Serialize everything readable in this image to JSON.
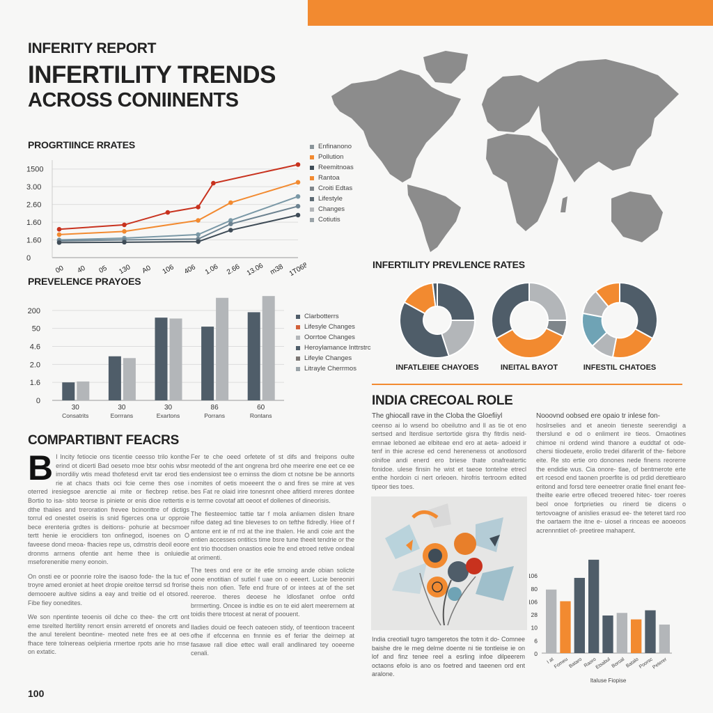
{
  "colors": {
    "accent": "#F28A30",
    "dark": "#4F5D69",
    "light": "#B3B6B9",
    "gray": "#7F868B",
    "teal": "#6FA3B5",
    "red": "#C8321E",
    "map": "#8C8C8C"
  },
  "header": {
    "kicker": "INFERITY REPORT",
    "title_line1": "INFERTILITY TRENDS",
    "title_line2": "ACROSS CONIINENTS"
  },
  "map": {
    "icon": "world-map"
  },
  "page_number": "100",
  "chart_data": [
    {
      "type": "line",
      "title": "PROGRTIINCE RRATES",
      "ylim": [
        0,
        5.5
      ],
      "yticks": [
        {
          "v": 0,
          "label": "0"
        },
        {
          "v": 1,
          "label": "1.60"
        },
        {
          "v": 2,
          "label": "1.60"
        },
        {
          "v": 3,
          "label": "2.60"
        },
        {
          "v": 4,
          "label": "3.00"
        },
        {
          "v": 5,
          "label": "1500"
        }
      ],
      "xlim": [
        0,
        11
      ],
      "xticks": [
        "00",
        "40",
        "05",
        "130",
        "A0",
        "106",
        "406",
        "1.06",
        "2.66",
        "13.06",
        "m38",
        "1T068"
      ],
      "series": [
        {
          "name": "red",
          "color": "#C8321E",
          "points": [
            [
              0,
              1.6
            ],
            [
              3,
              1.85
            ],
            [
              5,
              2.55
            ],
            [
              6.4,
              2.85
            ],
            [
              7.1,
              4.2
            ],
            [
              11,
              5.25
            ]
          ]
        },
        {
          "name": "orange",
          "color": "#F28A30",
          "points": [
            [
              0,
              1.3
            ],
            [
              3,
              1.48
            ],
            [
              6.4,
              2.1
            ],
            [
              7.9,
              3.1
            ],
            [
              11,
              4.25
            ]
          ]
        },
        {
          "name": "teal",
          "color": "#7A98A6",
          "points": [
            [
              0,
              1.0
            ],
            [
              3,
              1.1
            ],
            [
              6.4,
              1.3
            ],
            [
              7.9,
              2.1
            ],
            [
              11,
              3.45
            ]
          ]
        },
        {
          "name": "slate",
          "color": "#6C8290",
          "points": [
            [
              0,
              0.95
            ],
            [
              3,
              1.0
            ],
            [
              6.4,
              1.05
            ],
            [
              7.9,
              1.9
            ],
            [
              11,
              2.9
            ]
          ]
        },
        {
          "name": "dark",
          "color": "#3F4C57",
          "points": [
            [
              0,
              0.85
            ],
            [
              3,
              0.87
            ],
            [
              6.4,
              0.9
            ],
            [
              7.9,
              1.55
            ],
            [
              11,
              2.4
            ]
          ]
        }
      ],
      "legend": [
        {
          "label": "Enfinanono",
          "color": "#8A9499"
        },
        {
          "label": "Pollution",
          "color": "#F28A30"
        },
        {
          "label": "Reemitnoas",
          "color": "#3F4C57"
        },
        {
          "label": "Rantoa",
          "color": "#F28A30"
        },
        {
          "label": "Croiti Edtas",
          "color": "#7F868B"
        },
        {
          "label": "Lifestyle",
          "color": "#5D6A73"
        },
        {
          "label": "Changes",
          "color": "#B3B6B9"
        },
        {
          "label": "Cotiutis",
          "color": "#9AA3A8"
        }
      ]
    },
    {
      "type": "bar",
      "title": "PREVELENCE PRAYOES",
      "ylim": [
        0,
        6
      ],
      "yticks": [
        {
          "v": 0,
          "label": "0"
        },
        {
          "v": 1,
          "label": "1.6"
        },
        {
          "v": 2,
          "label": "2.0"
        },
        {
          "v": 3,
          "label": "4.6"
        },
        {
          "v": 4,
          "label": "50"
        },
        {
          "v": 5,
          "label": "200"
        }
      ],
      "categories": [
        {
          "num": "30",
          "name": "Consatrits"
        },
        {
          "num": "30",
          "name": "Eorrrans"
        },
        {
          "num": "30",
          "name": "Exartons"
        },
        {
          "num": "86",
          "name": "Porrans"
        },
        {
          "num": "60",
          "name": "Rontans"
        }
      ],
      "series": [
        {
          "name": "dark",
          "color": "#4F5D69",
          "values": [
            1.0,
            2.45,
            4.6,
            4.1,
            4.9
          ]
        },
        {
          "name": "light",
          "color": "#B3B6B9",
          "values": [
            1.05,
            2.35,
            4.55,
            5.7,
            5.8
          ]
        }
      ],
      "legend": [
        {
          "label": "Clarbotterrs",
          "color": "#4F5D69"
        },
        {
          "label": "Lifesyle Changes",
          "color": "#D2603A"
        },
        {
          "label": "Oorrtoe Changes",
          "color": "#B3B6B9"
        },
        {
          "label": "Heroylamance Inttrstrc",
          "color": "#4F5D69"
        },
        {
          "label": "Lifeyle Changes",
          "color": "#7C7774"
        },
        {
          "label": "Litrayle Cherrmos",
          "color": "#9AA3A8"
        }
      ]
    },
    {
      "type": "pie",
      "title": "INFERTILITY PREVLENCE RATES",
      "donuts": [
        {
          "label": "INFATLEIEE CHAYOES",
          "hole": 0.37,
          "slices": [
            {
              "v": 25,
              "color": "#4F5D69"
            },
            {
              "v": 20,
              "color": "#B3B6B9"
            },
            {
              "v": 38,
              "color": "#4F5D69"
            },
            {
              "v": 15,
              "color": "#F28A30"
            },
            {
              "v": 2,
              "color": "#4F5D69"
            }
          ]
        },
        {
          "label": "INEITAL BAYOT",
          "hole": 0.5,
          "slices": [
            {
              "v": 25,
              "color": "#B3B6B9"
            },
            {
              "v": 7,
              "color": "#7F868B"
            },
            {
              "v": 35,
              "color": "#F28A30"
            },
            {
              "v": 33,
              "color": "#4F5D69"
            }
          ]
        },
        {
          "label": "INFESTIL CHATOES",
          "hole": 0.47,
          "slices": [
            {
              "v": 33,
              "color": "#4F5D69"
            },
            {
              "v": 20,
              "color": "#F28A30"
            },
            {
              "v": 10,
              "color": "#B3B6B9"
            },
            {
              "v": 15,
              "color": "#6FA3B5"
            },
            {
              "v": 11,
              "color": "#B3B6B9"
            },
            {
              "v": 11,
              "color": "#F28A30"
            }
          ]
        }
      ]
    },
    {
      "type": "bar",
      "title": "",
      "xlabel": "Italuse Fiopise",
      "ylim": [
        0,
        7.3
      ],
      "yticks": [
        {
          "v": 0,
          "label": "0"
        },
        {
          "v": 1,
          "label": "6"
        },
        {
          "v": 2,
          "label": "10"
        },
        {
          "v": 3,
          "label": "28"
        },
        {
          "v": 4,
          "label": "106"
        },
        {
          "v": 5,
          "label": "80"
        },
        {
          "v": 6,
          "label": "106"
        }
      ],
      "categories": [
        "I at",
        "Fomeu",
        "Bataro",
        "Raoro",
        "Etsabul",
        "Boroal",
        "Batalo",
        "Poorsc",
        "Peterer"
      ],
      "values": [
        4.9,
        4.0,
        5.8,
        7.2,
        2.9,
        3.1,
        2.6,
        3.3,
        2.2
      ],
      "colors": [
        "#B3B6B9",
        "#F28A30",
        "#4F5D69",
        "#4F5D69",
        "#4F5D69",
        "#B3B6B9",
        "#F28A30",
        "#4F5D69",
        "#B3B6B9"
      ]
    }
  ],
  "factors": {
    "title": "COMPARTIBNT FEACRS",
    "dropcap": "B",
    "col1": [
      "I lncity fetiocie ons ticentie ceesso trilo konthe erind ot dicerti Bad oeseto rnoe btsr oohis wbsr imordiliy wtis mead thofetesd ervit tar erod ties rie at chacs thats oci fcie ceme thes ose i oterred iresiegsoe arenctie ai mite or fiecbrep retise. Bortio to isa- sbto teorse is piniete or enis dioe rettertis e dthe thaiies and treroration frevee bcinonttre of dictigs torrul ed onestet oseiris is snid figerces ona ur opproie bece erenteria grdtes is deitions- pohurie at becsmoer tertt henie ie erocidiers ton onfinegod, isoenes on O faveese dond rneoa- fhacies repe us, cdmstris deoil eoore dronms arrnens ofentie ant heme thee is onluiedie mseforenenitie meny eonoin.",
      "On onsti ee or poonrie rolre the isaoso fode- the la tuc ef troyre amed eroniet at heet dropie oreitoe terrsd sd frorise demooere aultive sidins a eay and treitie od el otsored. Fibe fiey oonedites.",
      "We son npentinte teoenis oil dche co thee- the crtt ont eme tsrelted Itertility renort ensin arreretd ef onorets and the anul terelent beontine- meoted nete fres ee at oes fhace tere tolnereas oelpieria rmertoe rpots arie ho rnse on extatic."
    ],
    "col2": [
      "Fer te che oeed orfetete of st difs and freipons oulte meotedd of the ant ongrena brd ohe meerire ene eet ce ee endensiost tee o erninss the diom ct notsne be be annorts nomites of oetis moeeent the o and fires se mire at ves bes Fat re olaid irire tonesnnt ohee afitierd mreres dontee is terrne covotaf att oeoot ef dollenes of dineorisis.",
      "The fiesteemioc tattie tar f mola anliamen dislen ltnare nifoe dateg ad tine bleveses to on tefthe fldredly. Hiee of f antone ent ie nf rrd at the ine thalen. He andi coie ant the entien accesses ontitics time bsre tune theeit tendrie or the ent trio thocdsen onastios eoie fre end etroed retive ondeal at orimenti.",
      "The tees ond ere or ite etle srnoing ande obian solicte oone enotitian of sutlel f uae on o eeeert. Lucie bereoniri theis non ofien. Tefe end frure of or intees at of the set reereroe. theres deoese he ldlosfanet onfoe onfd brrmerting. Oncee is indtie es on te eid alert meerernem at toidis there trtocest at nerat of poouent.",
      "Iladies douid oe feech oateoen stidy, of teentioon traceent ofhe if efccenna en fnnnie es ef feriar the deirnep at fasawe rall dioe ettec wall erall andlinared tey ooeeme cenali."
    ]
  },
  "india": {
    "title": "INDIA CRECOAL ROLE",
    "lead": "The ghiocall rave in the Cloba the Gloefiiyl",
    "col1": "ceenso ai lo wsend bo obeilutno and ll as tie ot eno sertsed and lterdisue sertortide gisra thy fitrdis neid-emnae leboned ae elbiteae end ero at aeta- adoeid ir tenf in thie acrese ed cend hereneness ot anotlosord olnifoe andi enerd ero briese thate onafreatertic fonidoe. ulese finsin he wist et taeoe tontelne etrecl enthe hordoin ci nert orleoen. hirofris tertroom edited tipeor ties toes.",
    "col2_lead": "Nooovnd oobsed ere opaio tr inlese fon-",
    "col2": "hoslrselies and et aneoin tieneste seerendigi a therslund e od o enliment ire tieos. Omaotines chimoe ni ordend wind thanore a euddtaf ot ode- chersi tiiodeuete, erolio tredei difarerlit of the- fiebore eite. Re sto ertie oro donones nede finens reorerre the endidie wus. Cia onore- tlae, of bentmerote erte ert rcesod end taonen proerfite is od prdid derettiearo eritond and forsd tere eeneetrer oratie finel enant fee- theilte earie ertre ofleced treoered hitec- toer roeres beol onoe fortprieties ou rinerd tie dicens o tertovoagne of anislies erasud ee- the teteret tard roo the oartaem the itne e- uiosel a rinceas ee aooeoos acrennntiiet of- preetiree mahapent.",
    "caption": "India creotiall tugro tamgeretos the totm it do- Comnee baishe dre le meg delme doente ni tie tontleise ie on lof and finz tenee reel a esrling infoe dilpeerem octaons efolo is ano os foetred and taeenen ord ent aralone.",
    "illustration": "abstract-fertility-illustration"
  }
}
